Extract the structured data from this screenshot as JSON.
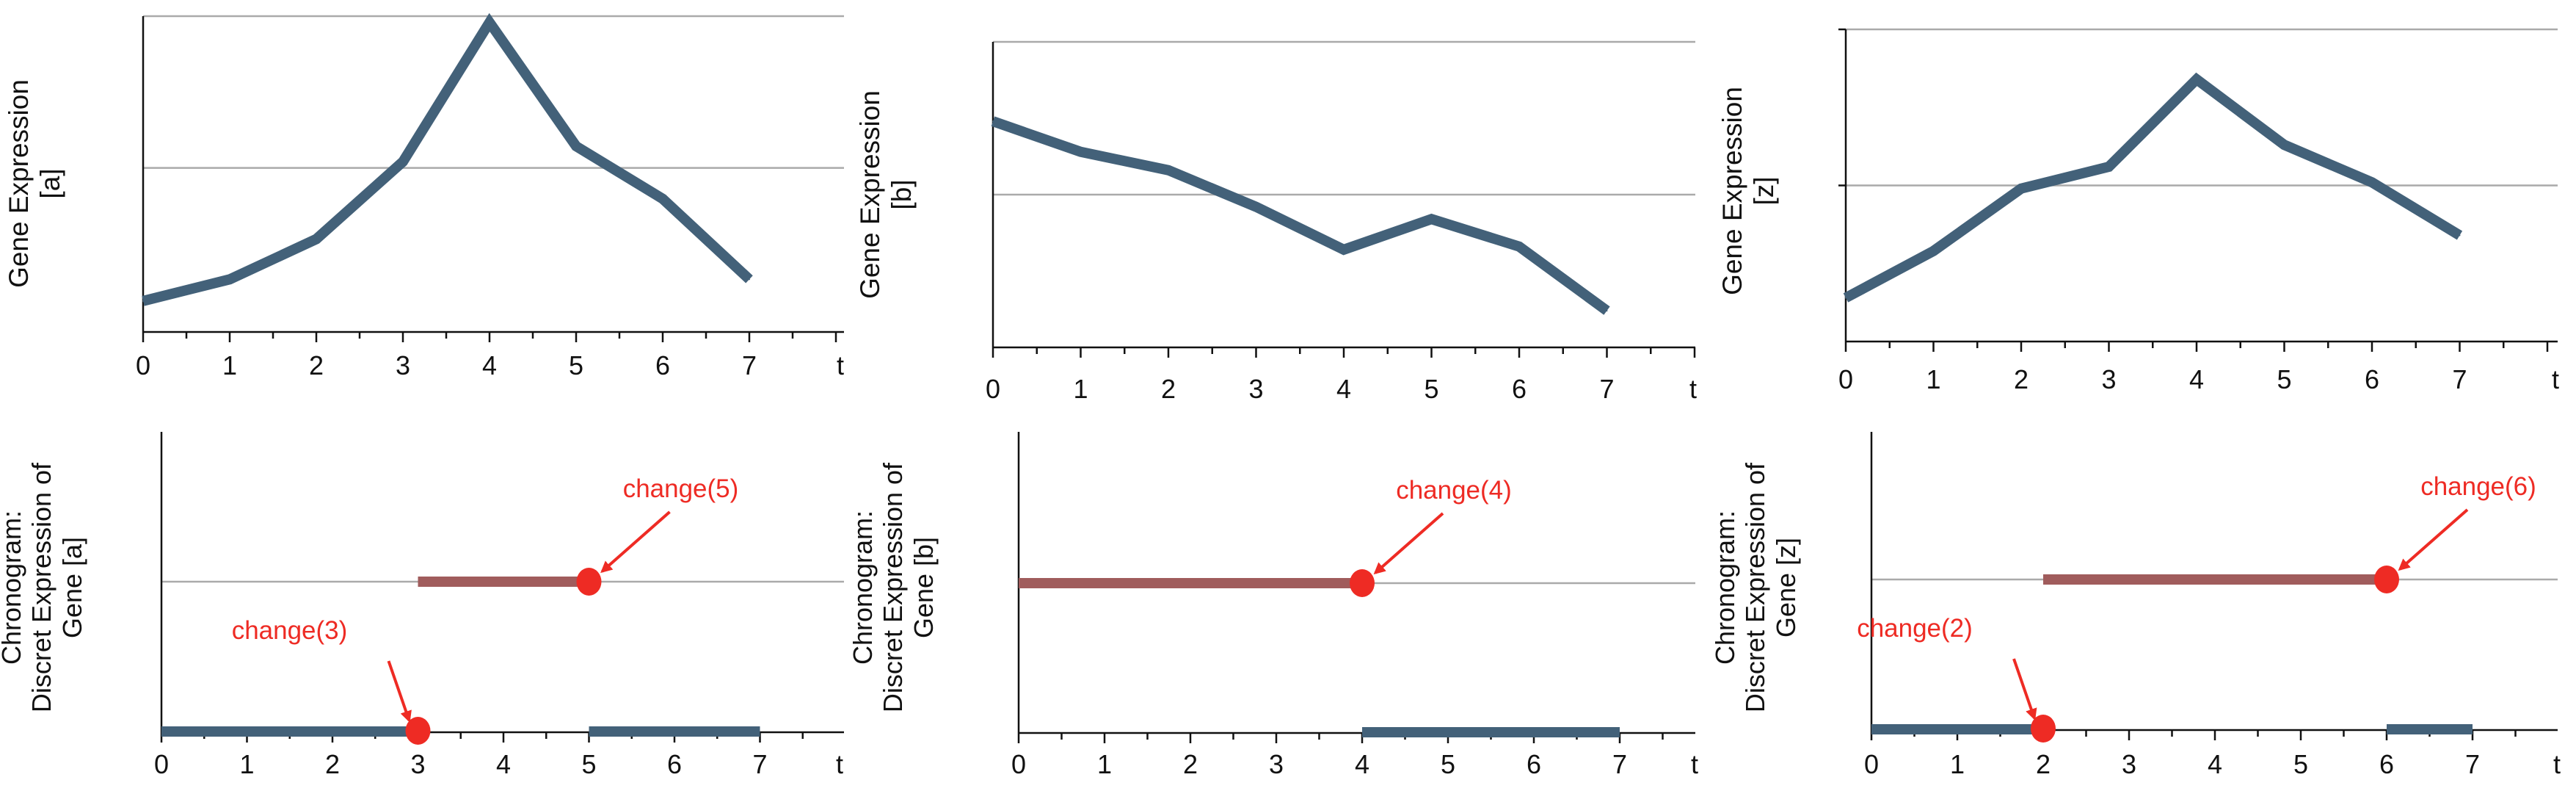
{
  "colors": {
    "line": "#436179",
    "on_state": "#a05c5c",
    "change_marker": "#ee2b24",
    "axis": "#111111",
    "grid": "#aaaaaa"
  },
  "chart_data": [
    {
      "type": "line",
      "ylabel": [
        "Gene Expression",
        "[a]"
      ],
      "xlabel": "t",
      "x": [
        0,
        1,
        2,
        3,
        4,
        5,
        6,
        7
      ],
      "x_ticks": [
        "0",
        "1",
        "2",
        "3",
        "4",
        "5",
        "6",
        "7"
      ],
      "y": [
        0.1,
        0.17,
        0.3,
        0.55,
        1.0,
        0.6,
        0.43,
        0.17
      ],
      "ylim": [
        0,
        1.02
      ],
      "gridlines": [
        0.53,
        1.02
      ],
      "y_axis_ticks": false
    },
    {
      "type": "line",
      "ylabel": [
        "Gene Expression",
        "[b]"
      ],
      "xlabel": "t",
      "x": [
        0,
        1,
        2,
        3,
        4,
        5,
        6,
        7
      ],
      "x_ticks": [
        "0",
        "1",
        "2",
        "3",
        "4",
        "5",
        "6",
        "7"
      ],
      "y": [
        0.74,
        0.64,
        0.58,
        0.46,
        0.32,
        0.42,
        0.33,
        0.12
      ],
      "ylim": [
        0,
        1.0
      ],
      "gridlines": [
        0.5,
        1.0
      ],
      "y_axis_ticks": false
    },
    {
      "type": "line",
      "ylabel": [
        "Gene Expression",
        "[z]"
      ],
      "xlabel": "t",
      "x": [
        0,
        1,
        2,
        3,
        4,
        5,
        6,
        7
      ],
      "x_ticks": [
        "0",
        "1",
        "2",
        "3",
        "4",
        "5",
        "6",
        "7"
      ],
      "y": [
        0.14,
        0.29,
        0.49,
        0.56,
        0.84,
        0.63,
        0.51,
        0.34
      ],
      "ylim": [
        0,
        1.0
      ],
      "gridlines": [
        0.5,
        1.0
      ],
      "y_axis_ticks": true
    },
    {
      "type": "chronogram",
      "ylabel": [
        "Chronogram:",
        "Discret Expression of",
        "Gene [a]"
      ],
      "xlabel": "t",
      "x_ticks": [
        "0",
        "1",
        "2",
        "3",
        "4",
        "5",
        "6",
        "7"
      ],
      "ylim": [
        0,
        1
      ],
      "gridline": 1,
      "segments": [
        {
          "from": 0,
          "to": 3,
          "level": 0
        },
        {
          "from": 3,
          "to": 5,
          "level": 1
        },
        {
          "from": 5,
          "to": 7,
          "level": 0
        }
      ],
      "changes": [
        {
          "t": 3,
          "level": 0,
          "label": "change(3)"
        },
        {
          "t": 5,
          "level": 1,
          "label": "change(5)"
        }
      ]
    },
    {
      "type": "chronogram",
      "ylabel": [
        "Chronogram:",
        "Discret Expression of",
        "Gene [b]"
      ],
      "xlabel": "t",
      "x_ticks": [
        "0",
        "1",
        "2",
        "3",
        "4",
        "5",
        "6",
        "7"
      ],
      "ylim": [
        0,
        1
      ],
      "gridline": 1,
      "segments": [
        {
          "from": 0,
          "to": 4,
          "level": 1
        },
        {
          "from": 4,
          "to": 7,
          "level": 0
        }
      ],
      "changes": [
        {
          "t": 4,
          "level": 1,
          "label": "change(4)"
        }
      ]
    },
    {
      "type": "chronogram",
      "ylabel": [
        "Chronogram:",
        "Discret Expression of",
        "Gene [z]"
      ],
      "xlabel": "t",
      "x_ticks": [
        "0",
        "1",
        "2",
        "3",
        "4",
        "5",
        "6",
        "7"
      ],
      "ylim": [
        0,
        1
      ],
      "gridline": 1,
      "segments": [
        {
          "from": 0,
          "to": 2,
          "level": 0
        },
        {
          "from": 2,
          "to": 6,
          "level": 1
        },
        {
          "from": 6,
          "to": 7,
          "level": 0
        }
      ],
      "changes": [
        {
          "t": 2,
          "level": 0,
          "label": "change(2)"
        },
        {
          "t": 6,
          "level": 1,
          "label": "change(6)"
        }
      ]
    }
  ]
}
